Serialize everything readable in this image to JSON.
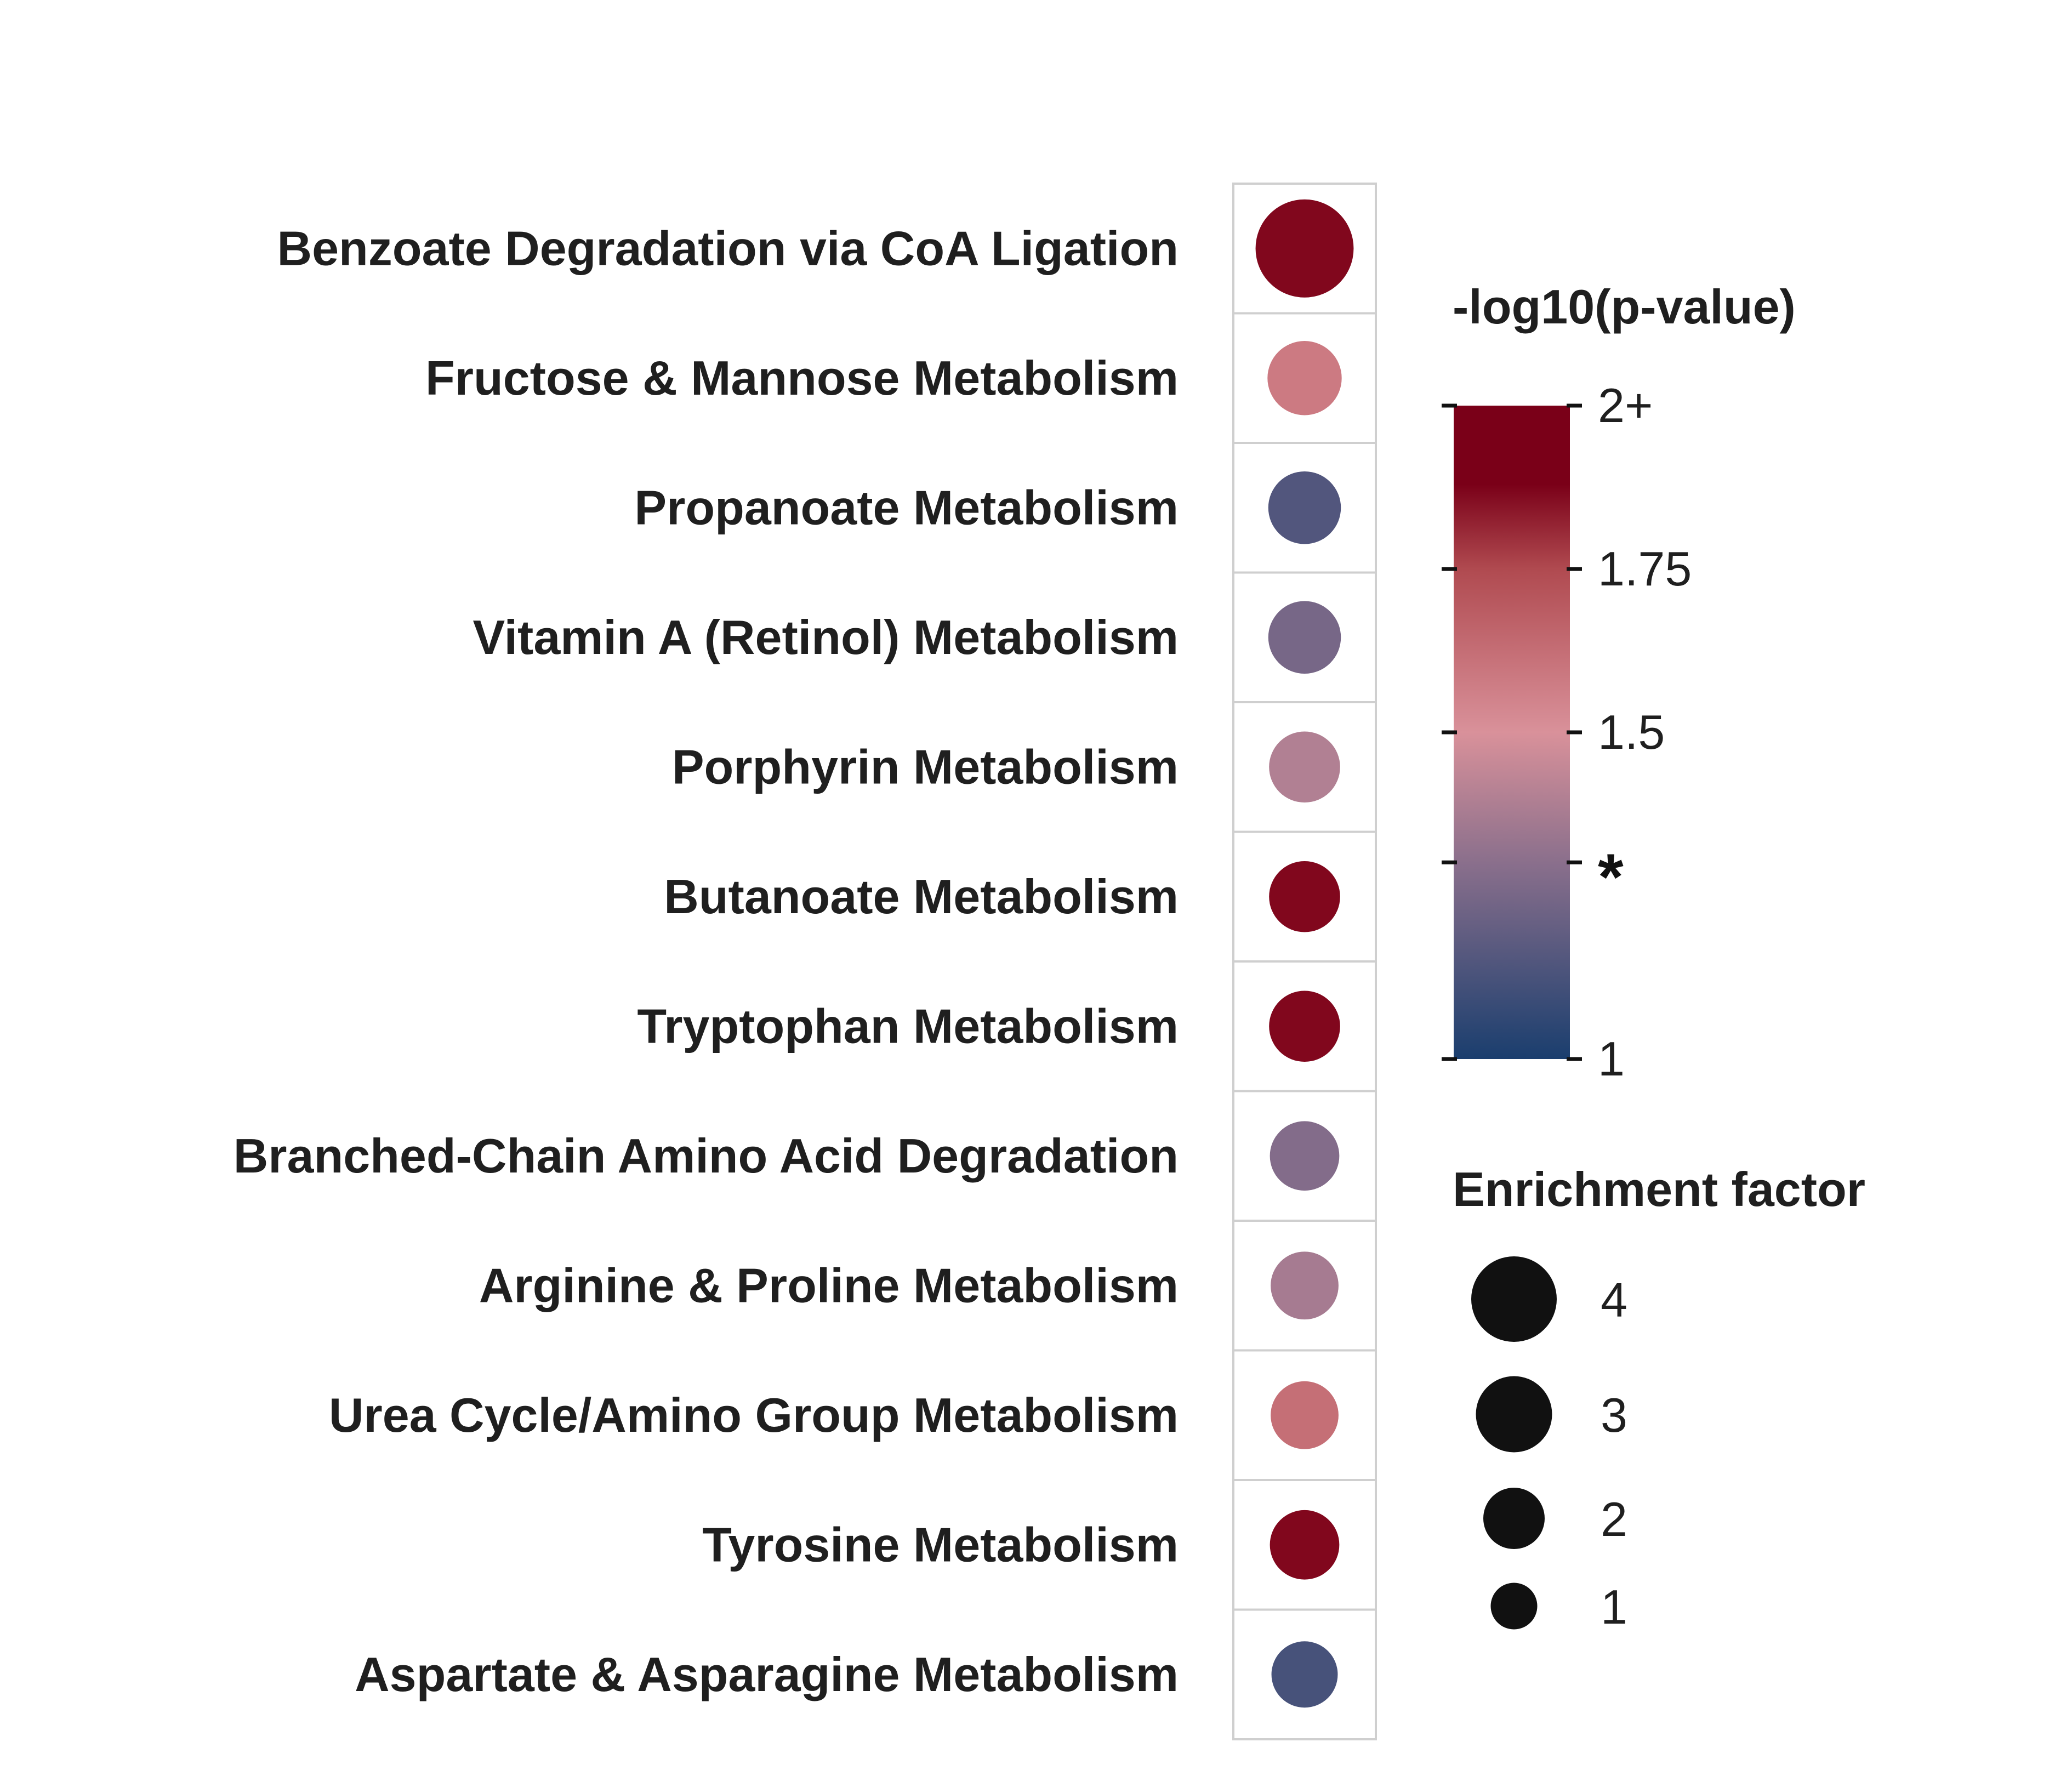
{
  "chart_data": {
    "type": "scatter",
    "title": "",
    "xlabel": "",
    "ylabel": "",
    "categories": [
      "Benzoate Degradation via CoA Ligation",
      "Fructose & Mannose Metabolism",
      "Propanoate Metabolism",
      "Vitamin A (Retinol) Metabolism",
      "Porphyrin Metabolism",
      "Butanoate Metabolism",
      "Tryptophan Metabolism",
      "Branched-Chain Amino Acid Degradation",
      "Arginine & Proline Metabolism",
      "Urea Cycle/Amino Group Metabolism",
      "Tyrosine Metabolism",
      "Aspartate & Asparagine Metabolism"
    ],
    "enrichment_factor": [
      4.1,
      2.6,
      2.5,
      2.5,
      2.4,
      2.4,
      2.4,
      2.3,
      2.2,
      2.2,
      2.3,
      2.1
    ],
    "neg_log10_p": [
      1.95,
      1.58,
      1.15,
      1.25,
      1.4,
      1.95,
      1.95,
      1.28,
      1.37,
      1.62,
      1.95,
      1.12
    ],
    "color_legend": {
      "title": "-log10(p-value)",
      "range": [
        1,
        2
      ],
      "ticks": [
        {
          "value": 2,
          "label": "2+"
        },
        {
          "value": 1.75,
          "label": "1.75"
        },
        {
          "value": 1.5,
          "label": "1.5"
        },
        {
          "value": 1.301,
          "label": "*"
        },
        {
          "value": 1,
          "label": "1"
        }
      ],
      "colors": [
        "#1a3e6e",
        "#d9919a",
        "#7a0018"
      ]
    },
    "size_legend": {
      "title": "Enrichment factor",
      "values": [
        4,
        3,
        2,
        1
      ],
      "labels": [
        "4",
        "3",
        "2",
        "1"
      ],
      "color": "#111111"
    },
    "grid": true
  }
}
